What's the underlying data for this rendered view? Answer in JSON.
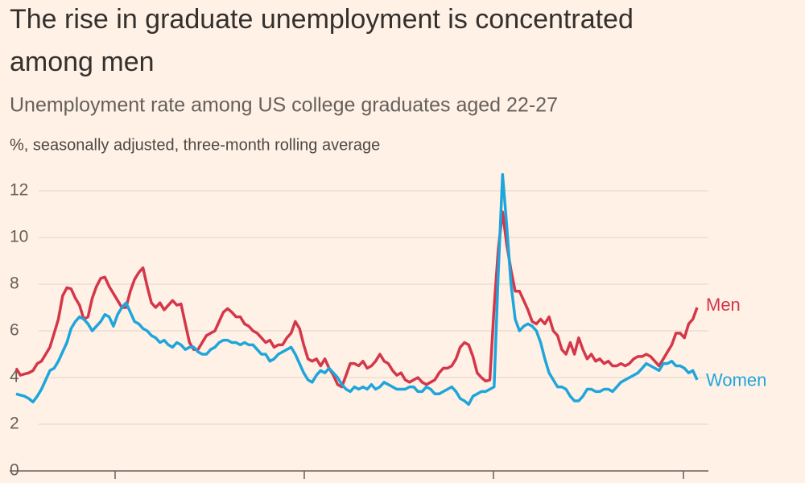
{
  "chart_data": {
    "type": "line",
    "title": "The rise in graduate unemployment is concentrated among men",
    "subtitle": "Unemployment rate among US college graduates aged 22-27",
    "y_label": "%, seasonally adjusted, three-month rolling average",
    "ylim": [
      0,
      12
    ],
    "yticks": [
      0,
      2,
      4,
      6,
      8,
      10,
      12
    ],
    "grid": true,
    "series": [
      {
        "name": "Men",
        "color": "#d4374a",
        "values": [
          4.4,
          4.1,
          4.15,
          4.2,
          4.3,
          4.6,
          4.7,
          5.0,
          5.3,
          5.9,
          6.5,
          7.5,
          7.85,
          7.8,
          7.4,
          7.1,
          6.5,
          6.6,
          7.4,
          7.9,
          8.25,
          8.3,
          7.9,
          7.6,
          7.3,
          7.0,
          7.0,
          7.7,
          8.2,
          8.5,
          8.7,
          7.9,
          7.2,
          7.0,
          7.2,
          6.9,
          7.1,
          7.3,
          7.1,
          7.15,
          6.3,
          5.5,
          5.2,
          5.2,
          5.5,
          5.8,
          5.9,
          6.0,
          6.4,
          6.8,
          6.95,
          6.8,
          6.6,
          6.6,
          6.3,
          6.2,
          6.0,
          5.9,
          5.7,
          5.5,
          5.6,
          5.3,
          5.4,
          5.4,
          5.7,
          5.9,
          6.4,
          6.1,
          5.4,
          4.8,
          4.7,
          4.8,
          4.5,
          4.8,
          4.4,
          4.1,
          3.7,
          3.6,
          4.1,
          4.6,
          4.6,
          4.5,
          4.7,
          4.4,
          4.5,
          4.7,
          5.0,
          4.7,
          4.6,
          4.3,
          4.1,
          4.2,
          3.9,
          3.8,
          3.9,
          4.0,
          3.8,
          3.7,
          3.8,
          3.9,
          4.2,
          4.4,
          4.4,
          4.5,
          4.8,
          5.3,
          5.5,
          5.4,
          4.9,
          4.2,
          4.0,
          3.85,
          3.9,
          7.0,
          9.5,
          11.1,
          9.7,
          8.6,
          7.7,
          7.7,
          7.3,
          6.9,
          6.4,
          6.3,
          6.5,
          6.3,
          6.6,
          6.0,
          5.8,
          5.2,
          5.0,
          5.5,
          5.0,
          5.7,
          5.2,
          4.8,
          5.0,
          4.7,
          4.8,
          4.6,
          4.7,
          4.5,
          4.5,
          4.6,
          4.5,
          4.6,
          4.8,
          4.9,
          4.9,
          5.0,
          4.9,
          4.7,
          4.5,
          4.8,
          5.1,
          5.4,
          5.9,
          5.9,
          5.7,
          6.3,
          6.5,
          7.0
        ]
      },
      {
        "name": "Women",
        "color": "#1ea6dc",
        "values": [
          3.3,
          3.25,
          3.2,
          3.1,
          2.95,
          3.2,
          3.5,
          3.9,
          4.3,
          4.4,
          4.7,
          5.1,
          5.5,
          6.1,
          6.4,
          6.6,
          6.5,
          6.3,
          6.0,
          6.2,
          6.4,
          6.7,
          6.6,
          6.2,
          6.7,
          7.0,
          7.2,
          6.8,
          6.4,
          6.3,
          6.1,
          6.0,
          5.8,
          5.7,
          5.5,
          5.6,
          5.4,
          5.3,
          5.5,
          5.4,
          5.2,
          5.3,
          5.3,
          5.1,
          5.0,
          5.0,
          5.2,
          5.3,
          5.5,
          5.6,
          5.6,
          5.5,
          5.5,
          5.4,
          5.5,
          5.4,
          5.4,
          5.2,
          5.0,
          5.0,
          4.7,
          4.8,
          5.0,
          5.1,
          5.2,
          5.3,
          5.0,
          4.6,
          4.2,
          3.9,
          3.8,
          4.1,
          4.3,
          4.2,
          4.4,
          4.2,
          4.0,
          3.7,
          3.5,
          3.4,
          3.6,
          3.5,
          3.6,
          3.5,
          3.7,
          3.5,
          3.6,
          3.8,
          3.7,
          3.6,
          3.5,
          3.5,
          3.5,
          3.6,
          3.6,
          3.4,
          3.4,
          3.6,
          3.5,
          3.3,
          3.3,
          3.4,
          3.5,
          3.6,
          3.4,
          3.1,
          3.0,
          2.85,
          3.2,
          3.3,
          3.4,
          3.4,
          3.5,
          3.6,
          8.5,
          12.7,
          10.5,
          8.0,
          6.5,
          6.0,
          6.2,
          6.3,
          6.2,
          6.0,
          5.5,
          4.8,
          4.2,
          3.9,
          3.6,
          3.6,
          3.5,
          3.2,
          3.0,
          3.0,
          3.2,
          3.5,
          3.5,
          3.4,
          3.4,
          3.5,
          3.5,
          3.4,
          3.6,
          3.8,
          3.9,
          4.0,
          4.1,
          4.2,
          4.4,
          4.6,
          4.5,
          4.4,
          4.3,
          4.6,
          4.6,
          4.7,
          4.5,
          4.5,
          4.4,
          4.2,
          4.3,
          3.9
        ]
      }
    ]
  }
}
